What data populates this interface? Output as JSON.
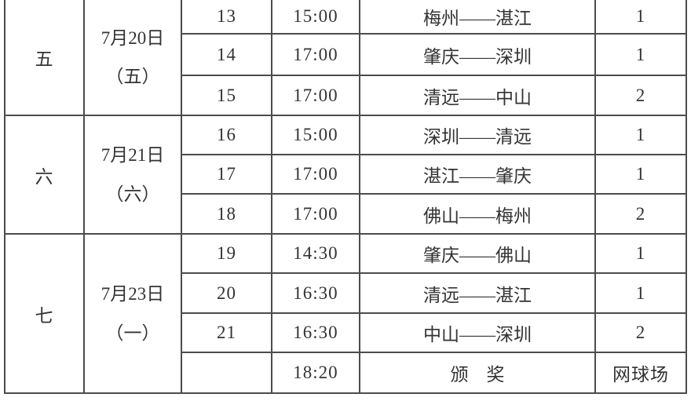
{
  "page": {
    "background": "#ffffff",
    "text_color": "#333333",
    "border_color": "#4c4c4c"
  },
  "table": {
    "groups": [
      {
        "round": "五",
        "date_line1": "7月20日",
        "date_line2": "（五）",
        "rows": [
          {
            "no": "13",
            "time": "15:00",
            "match": "梅州——湛江",
            "court": "1"
          },
          {
            "no": "14",
            "time": "17:00",
            "match": "肇庆——深圳",
            "court": "1"
          },
          {
            "no": "15",
            "time": "17:00",
            "match": "清远——中山",
            "court": "2"
          }
        ]
      },
      {
        "round": "六",
        "date_line1": "7月21日",
        "date_line2": "（六）",
        "rows": [
          {
            "no": "16",
            "time": "15:00",
            "match": "深圳——清远",
            "court": "1"
          },
          {
            "no": "17",
            "time": "17:00",
            "match": "湛江——肇庆",
            "court": "1"
          },
          {
            "no": "18",
            "time": "17:00",
            "match": "佛山——梅州",
            "court": "2"
          }
        ]
      },
      {
        "round": "七",
        "date_line1": "7月23日",
        "date_line2": "（一）",
        "rows": [
          {
            "no": "19",
            "time": "14:30",
            "match": "肇庆——佛山",
            "court": "1"
          },
          {
            "no": "20",
            "time": "16:30",
            "match": "清远——湛江",
            "court": "1"
          },
          {
            "no": "21",
            "time": "16:30",
            "match": "中山——深圳",
            "court": "2"
          },
          {
            "no": "",
            "time": "18:20",
            "match": "颁　奖",
            "court": "网球场"
          }
        ]
      }
    ]
  }
}
